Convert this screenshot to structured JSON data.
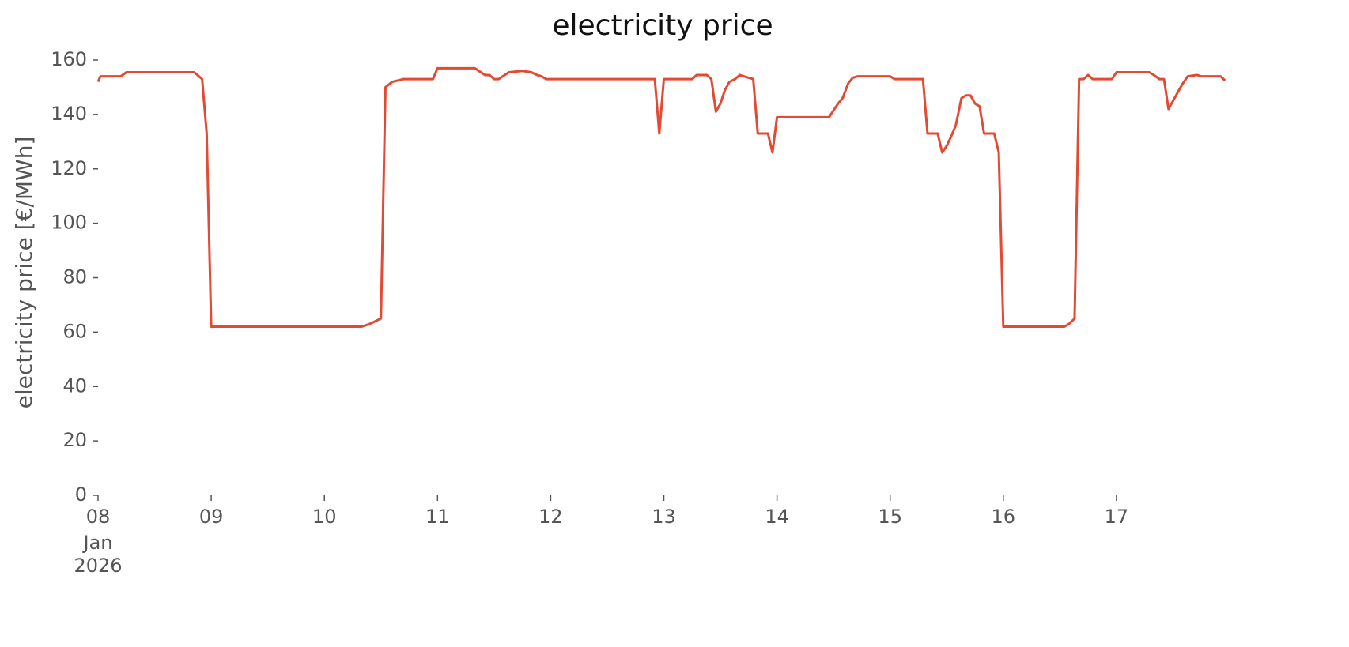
{
  "chart_data": {
    "type": "line",
    "title": "electricity price",
    "ylabel": "electricity price [€/MWh]",
    "x": [
      8.0,
      8.02,
      8.2,
      8.25,
      8.85,
      8.92,
      8.96,
      9.0,
      9.5,
      10.0,
      10.33,
      10.4,
      10.5,
      10.54,
      10.6,
      10.7,
      10.96,
      11.0,
      11.33,
      11.42,
      11.46,
      11.5,
      11.54,
      11.63,
      11.75,
      11.83,
      11.88,
      11.92,
      11.96,
      12.0,
      12.5,
      12.92,
      12.96,
      13.0,
      13.25,
      13.29,
      13.38,
      13.42,
      13.46,
      13.5,
      13.54,
      13.58,
      13.63,
      13.67,
      13.75,
      13.79,
      13.83,
      13.92,
      13.96,
      14.0,
      14.46,
      14.54,
      14.58,
      14.63,
      14.67,
      14.71,
      15.0,
      15.04,
      15.29,
      15.33,
      15.42,
      15.46,
      15.5,
      15.54,
      15.58,
      15.63,
      15.67,
      15.71,
      15.75,
      15.79,
      15.83,
      15.92,
      15.96,
      16.0,
      16.54,
      16.58,
      16.63,
      16.67,
      16.71,
      16.75,
      16.79,
      16.96,
      17.0,
      17.29,
      17.33,
      17.38,
      17.42,
      17.46,
      17.5,
      17.54,
      17.58,
      17.63,
      17.71,
      17.75,
      17.92,
      17.96
    ],
    "series": [
      {
        "name": "electricity price",
        "color": "#E24A33",
        "values": [
          152,
          154,
          154,
          155.5,
          155.5,
          153,
          133,
          62,
          62,
          62,
          62,
          63,
          65,
          150,
          152,
          153,
          153,
          157,
          157,
          154.5,
          154.5,
          153,
          153,
          155.5,
          156,
          155.5,
          154.5,
          154,
          153,
          153,
          153,
          153,
          133,
          153,
          153,
          154.5,
          154.5,
          153,
          141,
          144,
          149,
          152,
          153,
          154.5,
          153.5,
          153,
          133,
          133,
          126,
          139,
          139,
          144,
          146,
          151.5,
          153.5,
          154,
          154,
          153,
          153,
          133,
          133,
          126,
          128.5,
          132,
          136,
          146,
          147,
          147,
          144,
          143,
          133,
          133,
          126,
          62,
          62,
          63,
          65,
          153,
          153,
          154.5,
          153,
          153,
          155.5,
          155.5,
          154.5,
          153,
          153,
          142,
          145,
          148,
          151,
          154,
          154.5,
          154,
          154,
          152.5
        ]
      }
    ],
    "xlim": [
      8,
      17.958
    ],
    "xticks": [
      {
        "value": 8,
        "label": "08"
      },
      {
        "value": 9,
        "label": "09"
      },
      10,
      11,
      12,
      13,
      14,
      15,
      16,
      17
    ],
    "x_sublabels": [
      "Jan",
      "2026"
    ],
    "ylim": [
      0,
      160
    ],
    "yticks": [
      0,
      20,
      40,
      60,
      80,
      100,
      120,
      140,
      160
    ],
    "grid": false
  }
}
